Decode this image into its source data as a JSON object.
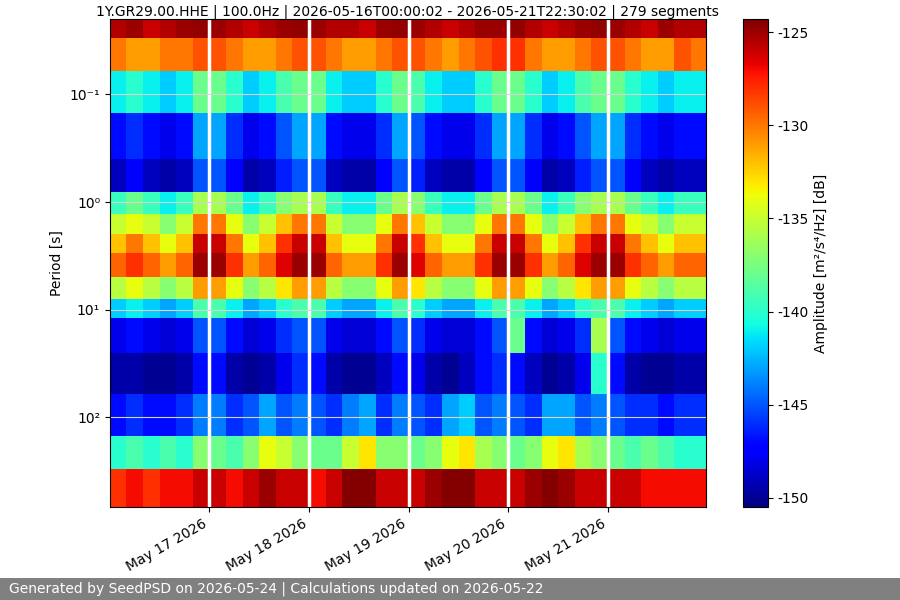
{
  "chart_data": {
    "type": "heatmap",
    "title": "1Y.GR29.00.HHE | 100.0Hz | 2026-05-16T00:00:02 - 2026-05-21T22:30:02 | 279 segments",
    "y_label": "Period [s]",
    "footer": "Generated by SeedPSD on 2026-05-24 | Calculations updated on 2026-05-22",
    "color": "jet",
    "log": "y",
    "grid": true,
    "xlim": [
      "2026-05-16T00:00:00",
      "2026-05-21T23:30:00"
    ],
    "xticks": [
      {
        "value": "2026-05-17T00:00:00",
        "label": "May 17 2026"
      },
      {
        "value": "2026-05-18T00:00:00",
        "label": "May 18 2026"
      },
      {
        "value": "2026-05-19T00:00:00",
        "label": "May 19 2026"
      },
      {
        "value": "2026-05-20T00:00:00",
        "label": "May 20 2026"
      },
      {
        "value": "2026-05-21T00:00:00",
        "label": "May 21 2026"
      }
    ],
    "ylim": [
      680,
      0.02
    ],
    "yticks": [
      {
        "value": 0.1,
        "label": "10⁻¹"
      },
      {
        "value": 1,
        "label": "10⁰"
      },
      {
        "value": 10,
        "label": "10¹"
      },
      {
        "value": 100,
        "label": "10²"
      }
    ],
    "x_edges": [
      "2026-05-16T00:00:00",
      "2026-05-16T04:00:00",
      "2026-05-16T08:00:00",
      "2026-05-16T12:00:00",
      "2026-05-16T16:00:00",
      "2026-05-16T20:00:00",
      "2026-05-17T00:00:00",
      "2026-05-17T04:00:00",
      "2026-05-17T08:00:00",
      "2026-05-17T12:00:00",
      "2026-05-17T16:00:00",
      "2026-05-17T20:00:00",
      "2026-05-18T00:00:00",
      "2026-05-18T04:00:00",
      "2026-05-18T08:00:00",
      "2026-05-18T12:00:00",
      "2026-05-18T16:00:00",
      "2026-05-18T20:00:00",
      "2026-05-19T00:00:00",
      "2026-05-19T04:00:00",
      "2026-05-19T08:00:00",
      "2026-05-19T12:00:00",
      "2026-05-19T16:00:00",
      "2026-05-19T20:00:00",
      "2026-05-20T00:00:00",
      "2026-05-20T04:00:00",
      "2026-05-20T08:00:00",
      "2026-05-20T12:00:00",
      "2026-05-20T16:00:00",
      "2026-05-20T20:00:00",
      "2026-05-21T00:00:00",
      "2026-05-21T04:00:00",
      "2026-05-21T08:00:00",
      "2026-05-21T12:00:00",
      "2026-05-21T16:00:00",
      "2026-05-21T20:00:00",
      "2026-05-22T00:00:00"
    ],
    "y_edges": [
      0.02,
      0.03,
      0.06,
      0.15,
      0.4,
      0.8,
      1.3,
      2,
      3,
      5,
      8,
      12,
      25,
      60,
      150,
      300,
      680
    ],
    "cells": [
      [
        -125.5,
        -125,
        -126,
        -125.5,
        -125,
        -124.8,
        -125,
        -125.5,
        -126,
        -125.5,
        -125,
        -124.8,
        -125,
        -125.5,
        -125.5,
        -126,
        -125,
        -124.8,
        -125,
        -125.5,
        -126,
        -125.5,
        -125,
        -125,
        -124.8,
        -125.5,
        -126,
        -125.5,
        -125,
        -124.8,
        -125,
        -125.5,
        -126,
        -125,
        -125.5,
        -125.5
      ],
      [
        -130,
        -131,
        -131,
        -130,
        -130,
        -129,
        -129,
        -130,
        -131,
        -131,
        -130,
        -129,
        -129,
        -130,
        -131,
        -131,
        -130,
        -129,
        -129,
        -130,
        -131,
        -130,
        -129,
        -128,
        -128,
        -130,
        -131,
        -131,
        -130,
        -129,
        -129,
        -130,
        -131,
        -131,
        -129,
        -130
      ],
      [
        -141,
        -140,
        -141,
        -142,
        -141,
        -138,
        -138,
        -140,
        -142,
        -141,
        -139,
        -138,
        -138,
        -141,
        -142,
        -142,
        -140,
        -138,
        -139,
        -141,
        -142,
        -142,
        -140,
        -138,
        -138,
        -140,
        -142,
        -141,
        -139,
        -138,
        -138,
        -140,
        -141,
        -142,
        -141,
        -141
      ],
      [
        -147,
        -146,
        -147,
        -148,
        -147,
        -143,
        -143,
        -146,
        -148,
        -147,
        -145,
        -143,
        -143,
        -147,
        -148,
        -148,
        -146,
        -143,
        -145,
        -147,
        -148,
        -148,
        -146,
        -143,
        -143,
        -146,
        -148,
        -147,
        -145,
        -143,
        -143,
        -146,
        -147,
        -148,
        -147,
        -147
      ],
      [
        -149,
        -147.5,
        -149,
        -149.5,
        -149,
        -145,
        -145,
        -147.5,
        -149.5,
        -149,
        -146.5,
        -145,
        -145,
        -149,
        -149.5,
        -149.5,
        -147.5,
        -145,
        -146.5,
        -149,
        -149.5,
        -149.5,
        -147.5,
        -145,
        -145,
        -147.5,
        -149.5,
        -149,
        -146.5,
        -145,
        -145,
        -147.5,
        -149,
        -149.5,
        -149,
        -149
      ],
      [
        -139.5,
        -138,
        -139.5,
        -141,
        -139.5,
        -136,
        -136,
        -138,
        -141,
        -139.5,
        -137,
        -136,
        -136,
        -139.5,
        -141,
        -141,
        -138,
        -136,
        -137,
        -139.5,
        -141,
        -141,
        -138,
        -136,
        -136,
        -138,
        -141,
        -139.5,
        -137,
        -136,
        -136,
        -138,
        -139.5,
        -141,
        -139.5,
        -139.5
      ],
      [
        -135,
        -134,
        -135,
        -137,
        -135,
        -130,
        -130,
        -134,
        -137,
        -135,
        -132,
        -130,
        -130,
        -135,
        -137,
        -137,
        -134,
        -130,
        -132,
        -135,
        -137,
        -137,
        -134,
        -130,
        -130,
        -134,
        -137,
        -135,
        -132,
        -130,
        -130,
        -134,
        -135,
        -137,
        -135,
        -135
      ],
      [
        -132,
        -130,
        -132,
        -134,
        -132,
        -126,
        -126,
        -130,
        -134,
        -132,
        -128,
        -126,
        -126,
        -132,
        -134,
        -134,
        -130,
        -126,
        -128,
        -132,
        -134,
        -134,
        -130,
        -126,
        -126,
        -130,
        -134,
        -132,
        -128,
        -126,
        -126,
        -130,
        -132,
        -134,
        -132,
        -132
      ],
      [
        -129.5,
        -128,
        -129.5,
        -131,
        -129.5,
        -125,
        -125,
        -128,
        -131,
        -129.5,
        -126.5,
        -125,
        -125,
        -129.5,
        -131,
        -131,
        -128,
        -125,
        -126.5,
        -129.5,
        -131,
        -131,
        -128,
        -125,
        -125,
        -128,
        -131,
        -129.5,
        -126.5,
        -125,
        -125,
        -128,
        -129.5,
        -131,
        -129.5,
        -129.5
      ],
      [
        -135.5,
        -134,
        -135.5,
        -137,
        -135.5,
        -131,
        -131,
        -134,
        -137,
        -135.5,
        -133,
        -131,
        -131,
        -135.5,
        -137,
        -137,
        -134,
        -131,
        -133,
        -135.5,
        -137,
        -137,
        -134,
        -131,
        -131,
        -134,
        -137,
        -135.5,
        -133,
        -131,
        -131,
        -134,
        -135.5,
        -137,
        -135.5,
        -135.5
      ],
      [
        -142,
        -141,
        -142,
        -143,
        -142,
        -139,
        -139,
        -141,
        -143,
        -142,
        -140,
        -139,
        -139,
        -142,
        -143,
        -143,
        -141,
        -139,
        -140,
        -142,
        -143,
        -143,
        -141,
        -139,
        -139,
        -141,
        -143,
        -142,
        -140,
        -139,
        -139,
        -141,
        -142,
        -143,
        -142,
        -142
      ],
      [
        -148,
        -147,
        -148,
        -148.5,
        -148,
        -145,
        -145,
        -147,
        -148.5,
        -148,
        -146,
        -145,
        -145,
        -148,
        -148.5,
        -148.5,
        -147,
        -145,
        -146,
        -148,
        -148.5,
        -148.5,
        -147,
        -145,
        -138,
        -147,
        -148.5,
        -148,
        -146,
        -136,
        -145,
        -147,
        -148,
        -148.5,
        -148,
        -148
      ],
      [
        -149.5,
        -149.5,
        -150,
        -150,
        -149.5,
        -147,
        -147,
        -149.5,
        -150,
        -149.5,
        -148,
        -146,
        -147,
        -149.5,
        -150,
        -150,
        -149,
        -147,
        -148,
        -149.5,
        -150,
        -149,
        -147,
        -146,
        -147,
        -149,
        -150,
        -149.5,
        -148,
        -140,
        -147,
        -149.5,
        -150,
        -150,
        -149.5,
        -149.5
      ],
      [
        -147,
        -146,
        -147,
        -147,
        -146,
        -144,
        -144,
        -146,
        -145,
        -143,
        -145,
        -144,
        -145,
        -146,
        -144,
        -143,
        -146,
        -144,
        -145,
        -146,
        -143,
        -142,
        -145,
        -144,
        -145,
        -146,
        -143,
        -143,
        -145,
        -144,
        -145,
        -146,
        -146,
        -147,
        -146,
        -146
      ],
      [
        -140,
        -139,
        -140,
        -139,
        -140,
        -137,
        -138,
        -139,
        -137,
        -134,
        -135,
        -137,
        -138,
        -138,
        -135,
        -133,
        -137,
        -137,
        -138,
        -137,
        -134,
        -133,
        -136,
        -137,
        -138,
        -137,
        -134,
        -133,
        -136,
        -137,
        -138,
        -139,
        -138,
        -139,
        -140,
        -140
      ],
      [
        -128,
        -127,
        -128,
        -127,
        -127,
        -126,
        -126,
        -127,
        -126,
        -125,
        -126,
        -126,
        -127,
        -126,
        -124.5,
        -124.5,
        -126,
        -126,
        -126,
        -125,
        -124.5,
        -124.5,
        -126,
        -126,
        -126,
        -125,
        -124.5,
        -125,
        -126,
        -126,
        -126,
        -126,
        -127,
        -127,
        -127,
        -127
      ]
    ],
    "colorbar": {
      "label": "Amplitude [m²/s⁴/Hz] [dB]",
      "range": [
        -150.5,
        -124.3
      ],
      "ticks": [
        -150,
        -145,
        -140,
        -135,
        -130,
        -125
      ]
    }
  }
}
